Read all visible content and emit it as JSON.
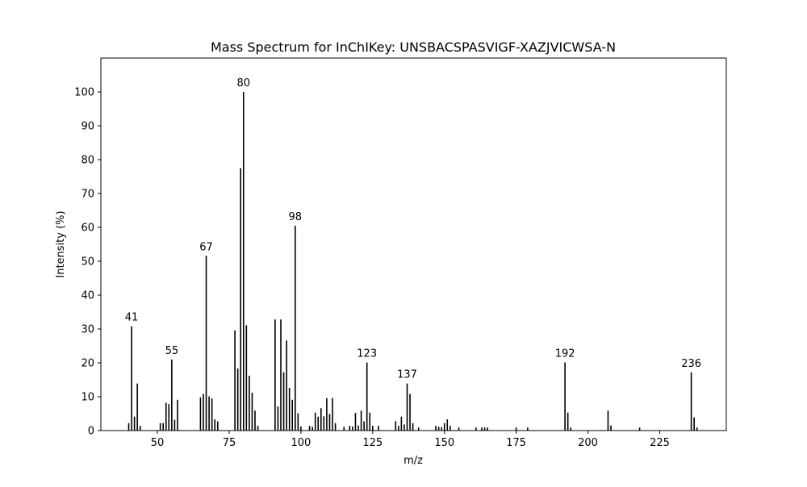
{
  "chart_data": {
    "type": "bar",
    "title": "Mass Spectrum for InChIKey: UNSBACSPASVIGF-XAZJVICWSA-N",
    "xlabel": "m/z",
    "ylabel": "Intensity (%)",
    "xlim": [
      30.3,
      248.2
    ],
    "ylim": [
      0,
      110
    ],
    "xticks": [
      50,
      75,
      100,
      125,
      150,
      175,
      200,
      225
    ],
    "yticks": [
      0,
      10,
      20,
      30,
      40,
      50,
      60,
      70,
      80,
      90,
      100
    ],
    "grid": false,
    "bar_color": "#000000",
    "x": [
      40,
      41,
      42,
      43,
      44,
      51,
      52,
      53,
      54,
      55,
      56,
      57,
      65,
      66,
      67,
      68,
      69,
      70,
      71,
      77,
      78,
      79,
      80,
      81,
      82,
      83,
      84,
      85,
      91,
      92,
      93,
      94,
      95,
      96,
      97,
      98,
      99,
      100,
      103,
      104,
      105,
      106,
      107,
      108,
      109,
      110,
      111,
      112,
      115,
      117,
      118,
      119,
      120,
      121,
      122,
      123,
      124,
      125,
      127,
      133,
      134,
      135,
      136,
      137,
      138,
      139,
      141,
      147,
      148,
      149,
      150,
      151,
      152,
      155,
      161,
      163,
      164,
      165,
      175,
      179,
      192,
      193,
      194,
      207,
      208,
      218,
      236,
      237,
      238
    ],
    "values": [
      2.2,
      30.8,
      4.1,
      13.9,
      1.4,
      2.2,
      2.2,
      8.2,
      7.8,
      21.0,
      3.2,
      9.1,
      9.8,
      10.8,
      51.6,
      10.1,
      9.5,
      3.3,
      2.7,
      29.6,
      18.3,
      77.5,
      100.0,
      31.1,
      16.2,
      11.2,
      5.9,
      1.4,
      32.8,
      7.1,
      32.8,
      17.2,
      26.6,
      12.6,
      9.1,
      60.5,
      5.1,
      1.2,
      1.4,
      1.1,
      5.3,
      4.1,
      6.6,
      4.2,
      9.6,
      4.9,
      9.6,
      2.2,
      1.1,
      1.4,
      1.2,
      5.2,
      1.5,
      5.9,
      2.7,
      20.1,
      5.3,
      1.4,
      1.4,
      2.8,
      1.4,
      4.1,
      1.8,
      13.9,
      10.8,
      2.2,
      0.9,
      1.4,
      1.1,
      1.0,
      2.2,
      3.3,
      1.4,
      0.9,
      0.9,
      0.9,
      0.9,
      0.9,
      0.9,
      0.9,
      20.1,
      5.3,
      0.9,
      5.9,
      1.5,
      0.9,
      17.2,
      3.9,
      0.9
    ],
    "peak_labels": [
      {
        "x": 41,
        "y": 30.8,
        "text": "41"
      },
      {
        "x": 55,
        "y": 21.0,
        "text": "55"
      },
      {
        "x": 67,
        "y": 51.6,
        "text": "67"
      },
      {
        "x": 80,
        "y": 100.0,
        "text": "80"
      },
      {
        "x": 98,
        "y": 60.5,
        "text": "98"
      },
      {
        "x": 123,
        "y": 20.1,
        "text": "123"
      },
      {
        "x": 137,
        "y": 13.9,
        "text": "137"
      },
      {
        "x": 192,
        "y": 20.1,
        "text": "192"
      },
      {
        "x": 236,
        "y": 17.2,
        "text": "236"
      }
    ]
  }
}
